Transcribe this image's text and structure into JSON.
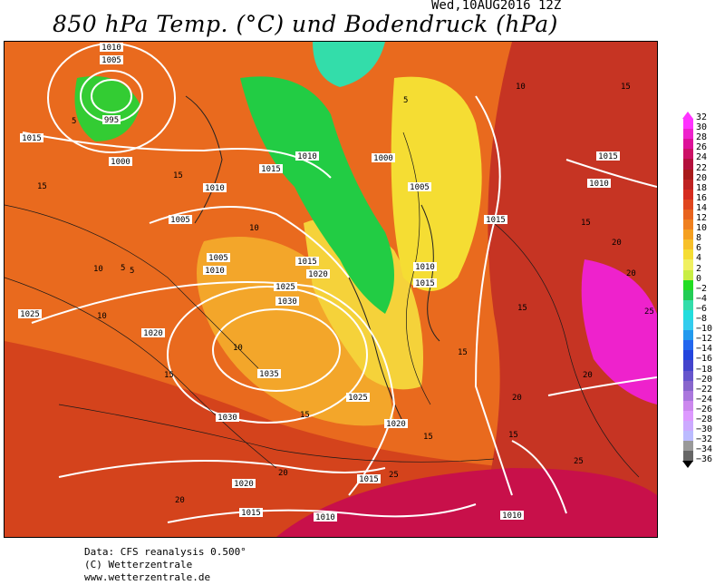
{
  "header": {
    "timestamp": "Wed,10AUG2016 12Z",
    "title": "850 hPa Temp. (°C) und Bodendruck (hPa)"
  },
  "legend": {
    "labels": [
      "32",
      "30",
      "28",
      "26",
      "24",
      "22",
      "20",
      "18",
      "16",
      "14",
      "12",
      "10",
      "8",
      "6",
      "4",
      "2",
      "0",
      "−2",
      "−4",
      "−6",
      "−8",
      "−10",
      "−12",
      "−14",
      "−16",
      "−18",
      "−20",
      "−22",
      "−24",
      "−26",
      "−28",
      "−30",
      "−32",
      "−34",
      "−36"
    ],
    "colors": [
      "#ff33ff",
      "#ee22cc",
      "#dd1199",
      "#cc1166",
      "#b3103c",
      "#a81a1a",
      "#bf2222",
      "#d62c1f",
      "#e0461e",
      "#e8631e",
      "#ef801f",
      "#f5a020",
      "#f7c02a",
      "#f5dd33",
      "#f0f060",
      "#c8ee44",
      "#22dd22",
      "#22cc55",
      "#33ddaa",
      "#22dddd",
      "#33ccee",
      "#2299ee",
      "#2266ee",
      "#2244dd",
      "#4444cc",
      "#6655cc",
      "#8866cc",
      "#aa77dd",
      "#cc88ee",
      "#dd99ff",
      "#ccaaff",
      "#bbbbff",
      "#999999",
      "#666666"
    ],
    "top_arrow_color": "#ff33ff",
    "bottom_arrow_color": "#000000"
  },
  "pressure_labels": [
    "1010",
    "1005",
    "995",
    "1000",
    "1015",
    "1015",
    "1010",
    "1000",
    "1005",
    "1015",
    "1015",
    "1010",
    "1005",
    "1010",
    "1005",
    "1015",
    "1010",
    "1020",
    "1025",
    "1030",
    "1025",
    "1020",
    "1035",
    "1030",
    "1025",
    "1020",
    "1015",
    "1020",
    "1015",
    "1010",
    "1010",
    "1015",
    "1010"
  ],
  "temperature_labels": [
    "5",
    "15",
    "10",
    "5",
    "15",
    "10",
    "10",
    "15",
    "15",
    "10",
    "15",
    "15",
    "20",
    "20",
    "25",
    "15",
    "15",
    "5",
    "15",
    "20",
    "25",
    "20",
    "20",
    "25",
    "20",
    "15",
    "10",
    "5"
  ],
  "credits": {
    "line1": "Data: CFS reanalysis 0.500°",
    "line2": "(C) Wetterzentrale",
    "line3": "www.wetterzentrale.de"
  }
}
